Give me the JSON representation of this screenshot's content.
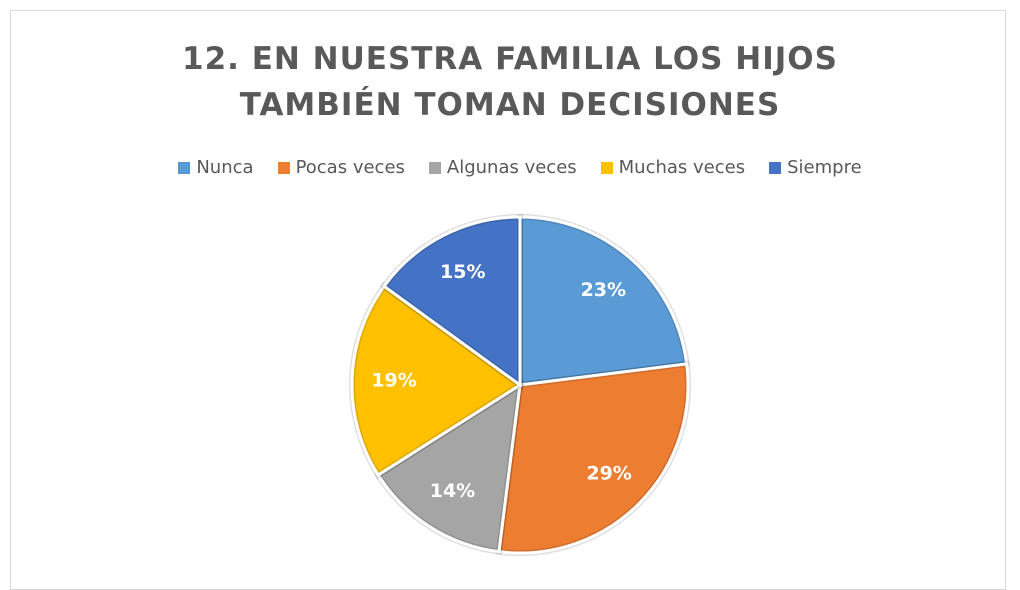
{
  "chart_data": {
    "type": "pie",
    "title": "12. EN NUESTRA FAMILIA LOS HIJOS TAMBIÉN TOMAN DECISIONES",
    "categories": [
      "Nunca",
      "Pocas veces",
      "Algunas veces",
      "Muchas veces",
      "Siempre"
    ],
    "values": [
      23,
      29,
      14,
      19,
      15
    ],
    "value_labels": [
      "23%",
      "29%",
      "14%",
      "19%",
      "15%"
    ],
    "colors": [
      "#5b9bd5",
      "#ed7d31",
      "#a5a5a5",
      "#ffc000",
      "#4472c4"
    ],
    "legend": "top"
  }
}
